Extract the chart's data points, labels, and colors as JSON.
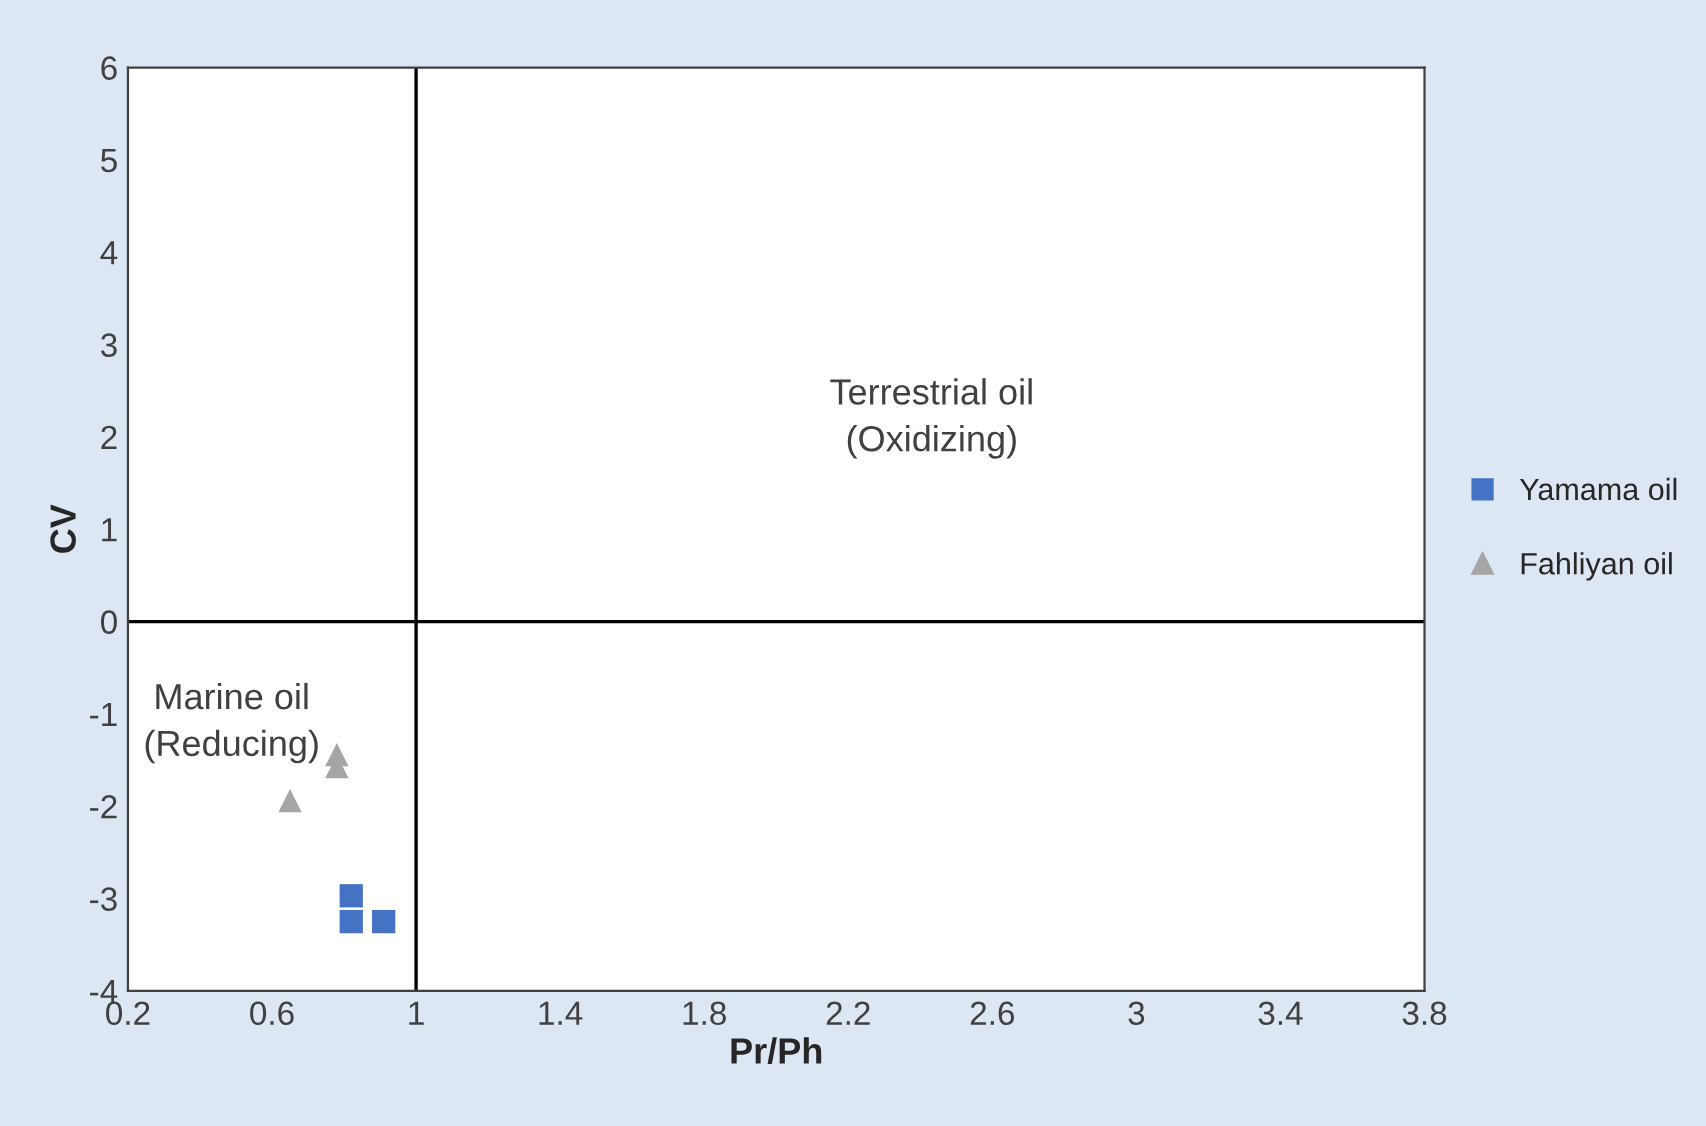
{
  "chart_data": {
    "type": "scatter",
    "xlabel": "Pr/Ph",
    "ylabel": "CV",
    "xlim": [
      0.2,
      3.8
    ],
    "xticks": [
      0.2,
      0.6,
      1,
      1.4,
      1.8,
      2.2,
      2.6,
      3,
      3.4,
      3.8
    ],
    "ylim": [
      -4,
      6
    ],
    "yticks": [
      -4,
      -3,
      -2,
      -1,
      0,
      1,
      2,
      3,
      4,
      5,
      6
    ],
    "series": [
      {
        "name": "Yamama oil",
        "color": "#4472c4",
        "marker": "square",
        "x": [
          0.82,
          0.82,
          0.91
        ],
        "values": [
          -2.97,
          -3.25,
          -3.25
        ]
      },
      {
        "name": "Fahliyan oil",
        "color": "#a5a5a5",
        "marker": "triangle",
        "x": [
          0.78,
          0.78,
          0.65
        ],
        "values": [
          -1.44,
          -1.57,
          -1.94
        ]
      }
    ],
    "ref_lines": [
      {
        "axis": "x",
        "value": 1,
        "color": "#000000"
      },
      {
        "axis": "y",
        "value": 0,
        "color": "#000000"
      }
    ],
    "annotations": [
      "Terrestrial oil\n(Oxidizing)",
      "Marine oil\n(Reducing)"
    ],
    "grid": false,
    "legend": "right"
  }
}
